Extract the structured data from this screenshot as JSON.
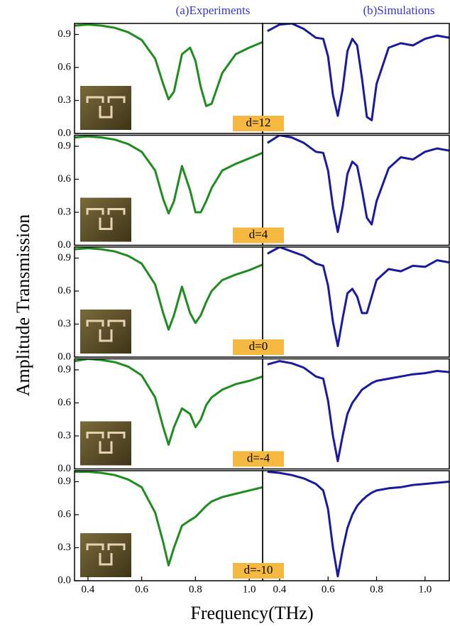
{
  "ylabel": "Amplitude Transmission",
  "xlabel": "Frequency(THz)",
  "chart_data": [
    {
      "type": "line",
      "title": "(a)Experiments",
      "annotation": "d=12",
      "color": "#1e8c1e",
      "xlim": [
        0.35,
        1.05
      ],
      "ylim": [
        0,
        1.0
      ],
      "yticks": [
        {
          "value": 0,
          "label": "0.0"
        },
        0.3,
        0.6,
        0.9
      ],
      "x": [
        0.35,
        0.4,
        0.45,
        0.5,
        0.55,
        0.6,
        0.65,
        0.68,
        0.7,
        0.72,
        0.75,
        0.78,
        0.8,
        0.82,
        0.84,
        0.86,
        0.9,
        0.95,
        1.0,
        1.05
      ],
      "values": [
        0.98,
        0.99,
        0.98,
        0.96,
        0.92,
        0.85,
        0.68,
        0.45,
        0.31,
        0.38,
        0.72,
        0.78,
        0.66,
        0.42,
        0.25,
        0.27,
        0.55,
        0.72,
        0.78,
        0.83
      ]
    },
    {
      "type": "line",
      "title": "(b)Simulations",
      "color": "#1a1aa0",
      "xlim": [
        0.33,
        1.1
      ],
      "ylim": [
        0,
        1.0
      ],
      "x": [
        0.35,
        0.4,
        0.45,
        0.5,
        0.55,
        0.58,
        0.6,
        0.62,
        0.64,
        0.66,
        0.68,
        0.7,
        0.72,
        0.74,
        0.76,
        0.78,
        0.8,
        0.85,
        0.9,
        0.95,
        1.0,
        1.05,
        1.1
      ],
      "values": [
        0.93,
        0.99,
        1.0,
        0.95,
        0.87,
        0.86,
        0.7,
        0.35,
        0.16,
        0.4,
        0.75,
        0.86,
        0.8,
        0.5,
        0.15,
        0.12,
        0.45,
        0.78,
        0.82,
        0.8,
        0.86,
        0.89,
        0.87
      ]
    },
    {
      "type": "line",
      "annotation": "d=4",
      "color": "#1e8c1e",
      "xlim": [
        0.35,
        1.05
      ],
      "ylim": [
        0,
        1.0
      ],
      "yticks": [
        {
          "value": 0,
          "label": "0.0"
        },
        0.3,
        0.6,
        0.9
      ],
      "x": [
        0.35,
        0.4,
        0.45,
        0.5,
        0.55,
        0.6,
        0.65,
        0.68,
        0.7,
        0.72,
        0.75,
        0.78,
        0.8,
        0.82,
        0.84,
        0.86,
        0.9,
        0.95,
        1.0,
        1.05
      ],
      "values": [
        0.98,
        0.99,
        0.98,
        0.96,
        0.92,
        0.85,
        0.68,
        0.42,
        0.29,
        0.4,
        0.72,
        0.5,
        0.3,
        0.3,
        0.4,
        0.52,
        0.68,
        0.74,
        0.79,
        0.84
      ]
    },
    {
      "type": "line",
      "color": "#1a1aa0",
      "xlim": [
        0.33,
        1.1
      ],
      "ylim": [
        0,
        1.0
      ],
      "x": [
        0.35,
        0.4,
        0.45,
        0.5,
        0.55,
        0.58,
        0.6,
        0.62,
        0.64,
        0.66,
        0.68,
        0.7,
        0.72,
        0.74,
        0.76,
        0.78,
        0.8,
        0.85,
        0.9,
        0.95,
        1.0,
        1.05,
        1.1
      ],
      "values": [
        0.93,
        1.0,
        0.98,
        0.93,
        0.85,
        0.84,
        0.68,
        0.35,
        0.12,
        0.35,
        0.65,
        0.76,
        0.72,
        0.5,
        0.25,
        0.19,
        0.4,
        0.7,
        0.8,
        0.78,
        0.85,
        0.88,
        0.86
      ]
    },
    {
      "type": "line",
      "annotation": "d=0",
      "color": "#1e8c1e",
      "xlim": [
        0.35,
        1.05
      ],
      "ylim": [
        0,
        1.0
      ],
      "yticks": [
        {
          "value": 0,
          "label": "0.0"
        },
        0.3,
        0.6,
        0.9
      ],
      "x": [
        0.35,
        0.4,
        0.45,
        0.5,
        0.55,
        0.6,
        0.65,
        0.68,
        0.7,
        0.72,
        0.75,
        0.78,
        0.8,
        0.82,
        0.84,
        0.86,
        0.9,
        0.95,
        1.0,
        1.05
      ],
      "values": [
        0.98,
        0.99,
        0.98,
        0.96,
        0.92,
        0.85,
        0.66,
        0.4,
        0.25,
        0.38,
        0.64,
        0.4,
        0.31,
        0.38,
        0.5,
        0.6,
        0.7,
        0.75,
        0.79,
        0.84
      ]
    },
    {
      "type": "line",
      "color": "#1a1aa0",
      "xlim": [
        0.33,
        1.1
      ],
      "ylim": [
        0,
        1.0
      ],
      "x": [
        0.35,
        0.4,
        0.45,
        0.5,
        0.55,
        0.58,
        0.6,
        0.62,
        0.64,
        0.66,
        0.68,
        0.7,
        0.72,
        0.74,
        0.76,
        0.78,
        0.8,
        0.85,
        0.9,
        0.95,
        1.0,
        1.05,
        1.1
      ],
      "values": [
        0.94,
        1.0,
        0.96,
        0.92,
        0.85,
        0.83,
        0.65,
        0.32,
        0.1,
        0.35,
        0.58,
        0.62,
        0.55,
        0.4,
        0.4,
        0.55,
        0.7,
        0.8,
        0.78,
        0.83,
        0.82,
        0.88,
        0.86
      ]
    },
    {
      "type": "line",
      "annotation": "d=-4",
      "color": "#1e8c1e",
      "xlim": [
        0.35,
        1.05
      ],
      "ylim": [
        0,
        1.0
      ],
      "yticks": [
        {
          "value": 0,
          "label": "0.0"
        },
        0.3,
        0.6,
        0.9
      ],
      "x": [
        0.35,
        0.4,
        0.45,
        0.5,
        0.55,
        0.6,
        0.65,
        0.68,
        0.7,
        0.72,
        0.75,
        0.78,
        0.8,
        0.82,
        0.84,
        0.86,
        0.9,
        0.95,
        1.0,
        1.05
      ],
      "values": [
        0.98,
        1.0,
        0.99,
        0.97,
        0.93,
        0.85,
        0.65,
        0.38,
        0.22,
        0.38,
        0.55,
        0.5,
        0.38,
        0.45,
        0.58,
        0.65,
        0.72,
        0.77,
        0.8,
        0.84
      ]
    },
    {
      "type": "line",
      "color": "#1a1aa0",
      "xlim": [
        0.33,
        1.1
      ],
      "ylim": [
        0,
        1.0
      ],
      "x": [
        0.35,
        0.4,
        0.45,
        0.5,
        0.55,
        0.58,
        0.6,
        0.62,
        0.64,
        0.66,
        0.68,
        0.7,
        0.72,
        0.74,
        0.76,
        0.78,
        0.8,
        0.85,
        0.9,
        0.95,
        1.0,
        1.05,
        1.1
      ],
      "values": [
        0.95,
        0.98,
        0.96,
        0.92,
        0.84,
        0.82,
        0.62,
        0.3,
        0.07,
        0.3,
        0.5,
        0.6,
        0.66,
        0.72,
        0.75,
        0.78,
        0.8,
        0.82,
        0.84,
        0.86,
        0.87,
        0.89,
        0.88
      ]
    },
    {
      "type": "line",
      "annotation": "d=-10",
      "color": "#1e8c1e",
      "xlim": [
        0.35,
        1.05
      ],
      "ylim": [
        0,
        1.0
      ],
      "yticks": [
        {
          "value": 0,
          "label": "0.0"
        },
        0.3,
        0.6,
        0.9
      ],
      "xticks": [
        0.4,
        0.6,
        0.8,
        {
          "value": 1.0,
          "label": "1.0"
        }
      ],
      "x": [
        0.35,
        0.4,
        0.45,
        0.5,
        0.55,
        0.6,
        0.65,
        0.68,
        0.7,
        0.72,
        0.75,
        0.78,
        0.8,
        0.82,
        0.84,
        0.86,
        0.9,
        0.95,
        1.0,
        1.05
      ],
      "values": [
        0.99,
        0.99,
        0.98,
        0.96,
        0.92,
        0.85,
        0.62,
        0.35,
        0.14,
        0.3,
        0.5,
        0.55,
        0.58,
        0.63,
        0.68,
        0.72,
        0.76,
        0.79,
        0.82,
        0.85
      ]
    },
    {
      "type": "line",
      "color": "#1a1aa0",
      "xlim": [
        0.33,
        1.1
      ],
      "ylim": [
        0,
        1.0
      ],
      "xticks": [
        0.4,
        0.6,
        0.8,
        {
          "value": 1.0,
          "label": "1.0"
        }
      ],
      "x": [
        0.35,
        0.4,
        0.45,
        0.5,
        0.55,
        0.58,
        0.6,
        0.62,
        0.64,
        0.66,
        0.68,
        0.7,
        0.72,
        0.74,
        0.76,
        0.78,
        0.8,
        0.85,
        0.9,
        0.95,
        1.0,
        1.05,
        1.1
      ],
      "values": [
        0.99,
        0.98,
        0.96,
        0.93,
        0.88,
        0.82,
        0.65,
        0.3,
        0.04,
        0.28,
        0.48,
        0.6,
        0.68,
        0.73,
        0.77,
        0.8,
        0.82,
        0.84,
        0.85,
        0.87,
        0.88,
        0.89,
        0.9
      ]
    }
  ]
}
